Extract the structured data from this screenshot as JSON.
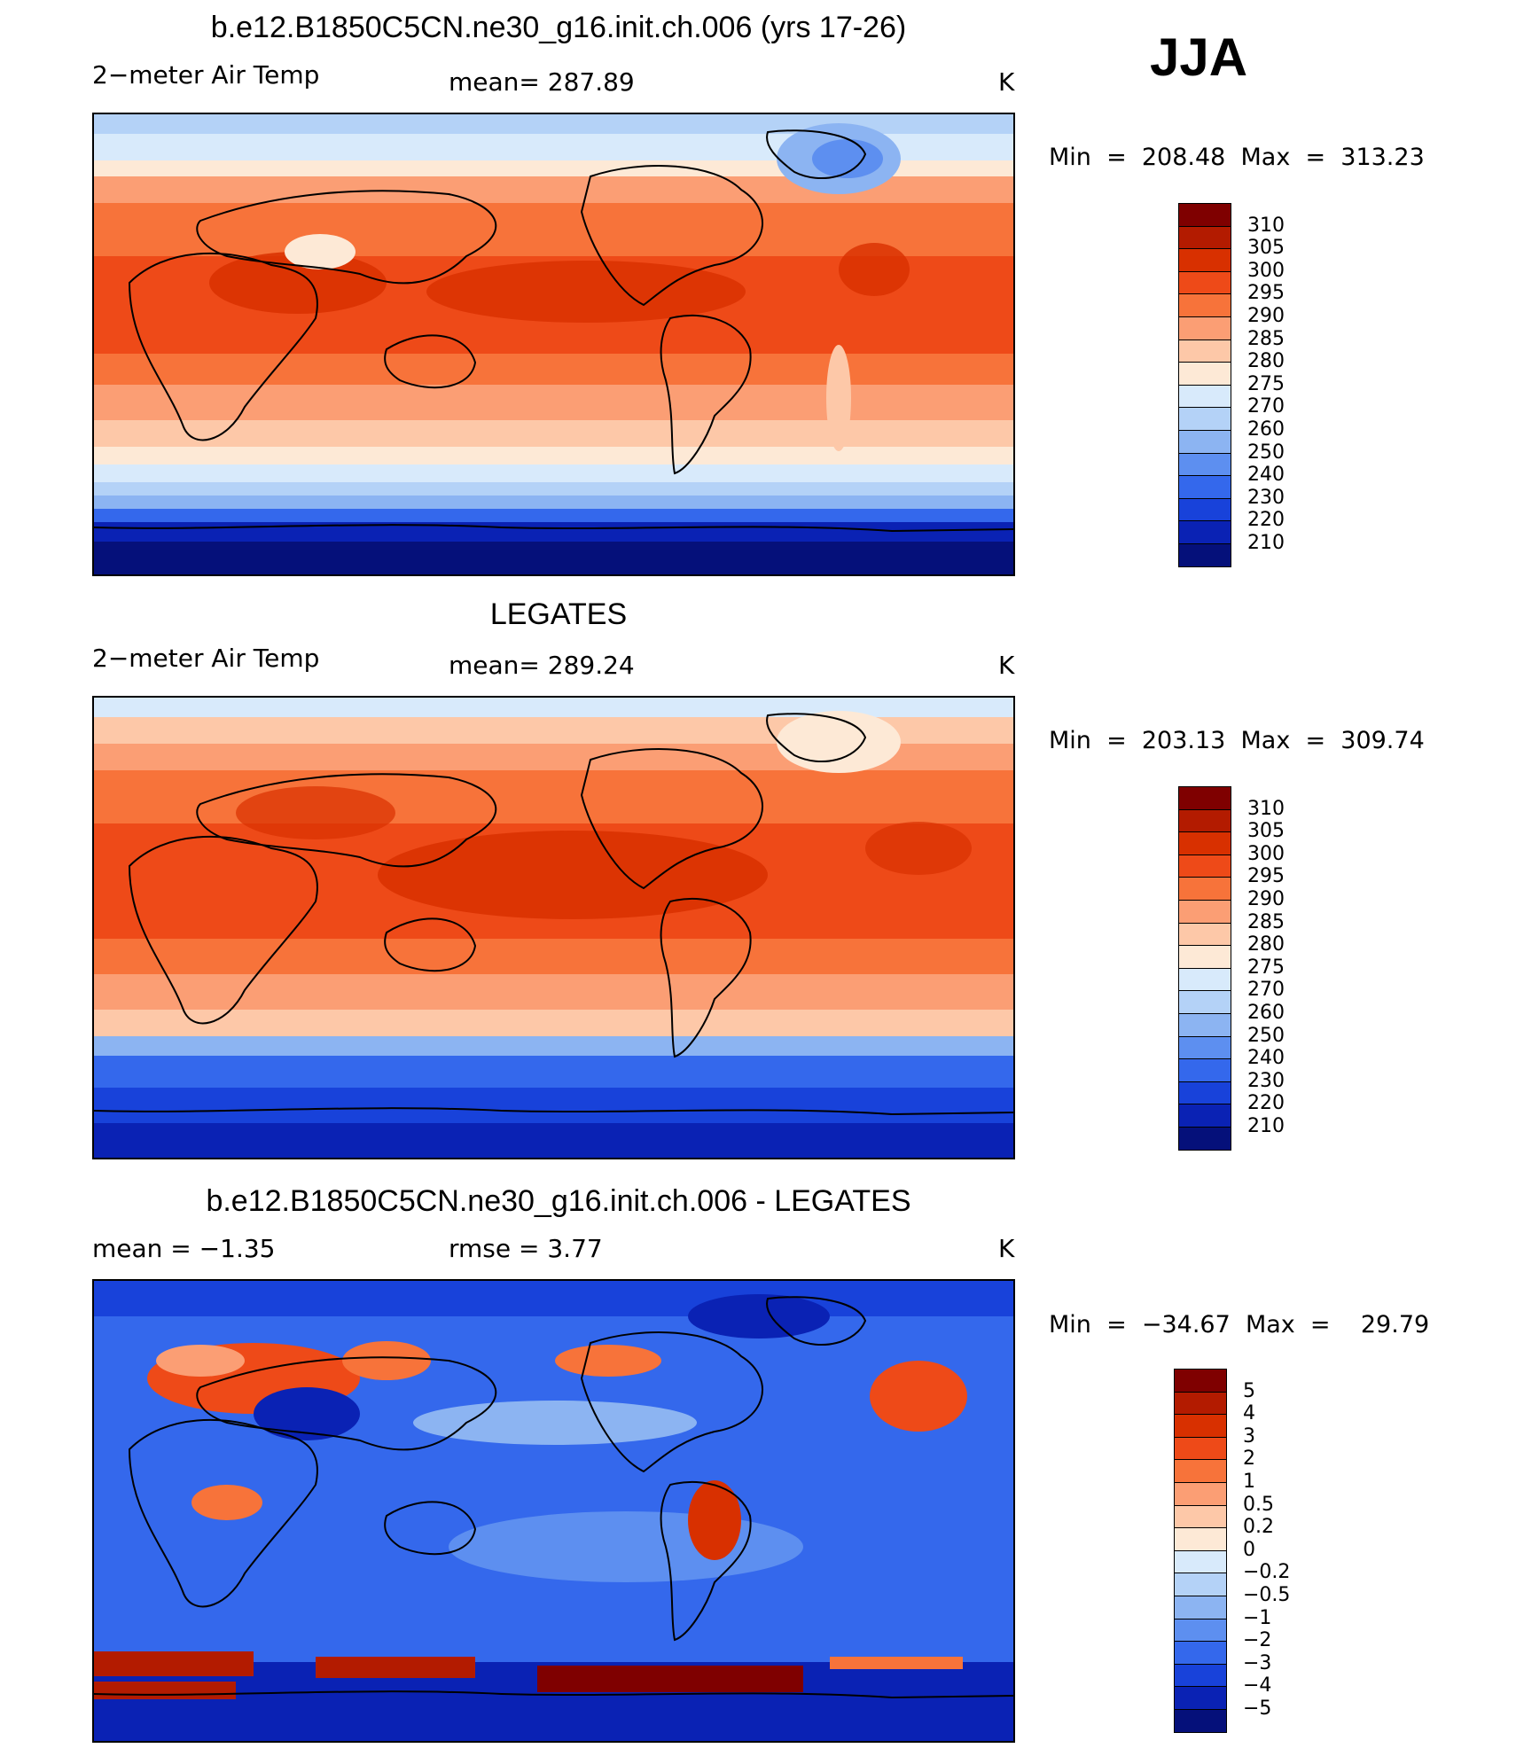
{
  "season": "JJA",
  "panels": [
    {
      "id": "model",
      "title": "b.e12.B1850C5CN.ne30_g16.init.ch.006 (yrs 17-26)",
      "left_label": "2−meter Air Temp",
      "center_label": "mean=  287.89",
      "units": "K",
      "minmax": "Min  =  208.48  Max  =  313.23",
      "colorbar": [
        "310",
        "305",
        "300",
        "295",
        "290",
        "285",
        "280",
        "275",
        "270",
        "260",
        "250",
        "240",
        "230",
        "220",
        "210"
      ]
    },
    {
      "id": "obs",
      "title": "LEGATES",
      "left_label": "2−meter Air Temp",
      "center_label": "mean=  289.24",
      "units": "K",
      "minmax": "Min  =  203.13  Max  =  309.74",
      "colorbar": [
        "310",
        "305",
        "300",
        "295",
        "290",
        "285",
        "280",
        "275",
        "270",
        "260",
        "250",
        "240",
        "230",
        "220",
        "210"
      ]
    },
    {
      "id": "diff",
      "title": "b.e12.B1850C5CN.ne30_g16.init.ch.006 - LEGATES",
      "left_label": "mean  =    −1.35",
      "center_label": "rmse  =     3.77",
      "units": "K",
      "minmax": "Min  =  −34.67  Max  =    29.79",
      "colorbar": [
        "5",
        "4",
        "3",
        "2",
        "1",
        "0.5",
        "0.2",
        "0",
        "−0.2",
        "−0.5",
        "−1",
        "−2",
        "−3",
        "−4",
        "−5"
      ]
    }
  ],
  "palette": [
    "#7f0000",
    "#b31b00",
    "#d83000",
    "#ee4a18",
    "#f7733a",
    "#fb9e74",
    "#fdc8a8",
    "#fde9d6",
    "#d8eafb",
    "#b4d2f7",
    "#8cb4f2",
    "#5d8ff0",
    "#3468ec",
    "#1842da",
    "#0a22b4",
    "#05107a"
  ]
}
